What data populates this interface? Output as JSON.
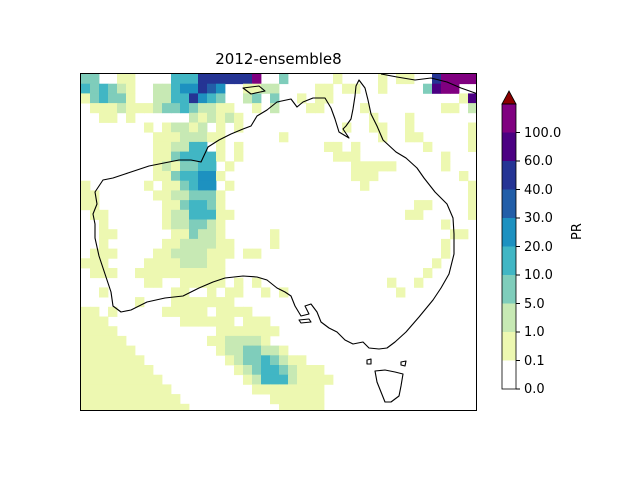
{
  "title": "2012-ensemble8",
  "colorbar": {
    "label": "PR",
    "ticks": [
      "0.0",
      "0.1",
      "1.0",
      "5.0",
      "10.0",
      "20.0",
      "30.0",
      "40.0",
      "60.0",
      "100.0"
    ],
    "colors": [
      "#ffffff",
      "#edf8b1",
      "#c7e9b4",
      "#7fcdbb",
      "#41b6c4",
      "#1d91c0",
      "#225ea8",
      "#253494",
      "#4b0082",
      "#800080"
    ],
    "extend_color": "#8b0000"
  },
  "map_field": {
    "rows": [
      "33..11....4447777779..3.....1....1.11..79999",
      "434321..22455765..1122....11.11..1....3899",
      "134331..22447543..23.3..1.11..............188",
      ".1112111233432211..1.2...11....1........11.22",
      "..11.1......212121..............1...1........112",
      ".......1.12212.1.1...........1..11..1......11",
      "........11122211......1..........1..11.....11",
      "........112244.1.1.........11.1.......1....11",
      "........11344441.1..........111.........1...1",
      "........1213344.1.............11111.....1...",
      "........11344551..............111.........1..",
      "1......1.113455.1..............1...........11",
      "11......11223331...........................1",
      "11.......1134431.....................11....1",
      ".11......12244411...................11.....1",
      "..1......1223321........................1..",
      "..11......113221.....1...................11.",
      "..1......11222211....1..................1..",
      ".111....112222111.11....................1.",
      "111....111122211.......................1..",
      ".111..1111111111......................1..",
      ".......11..11111.1.1..............1..1..",
      "..1.......11..1.11..1.1............1...",
      "......1...1111111..............",
      "11.1.....11111.1111...........",
      "111........111111.111............",
      "1111...........1111111.........",
      "11111.........1122221...........",
      "111111.........12233221.........",
      "1111111.........123343211........",
      "11111111.........1234432111......",
      "111111111.........1244421111.....",
      "1111111111.........11111111......",
      "11111111111..........111111......",
      "111111111111..........11111......"
    ]
  }
}
